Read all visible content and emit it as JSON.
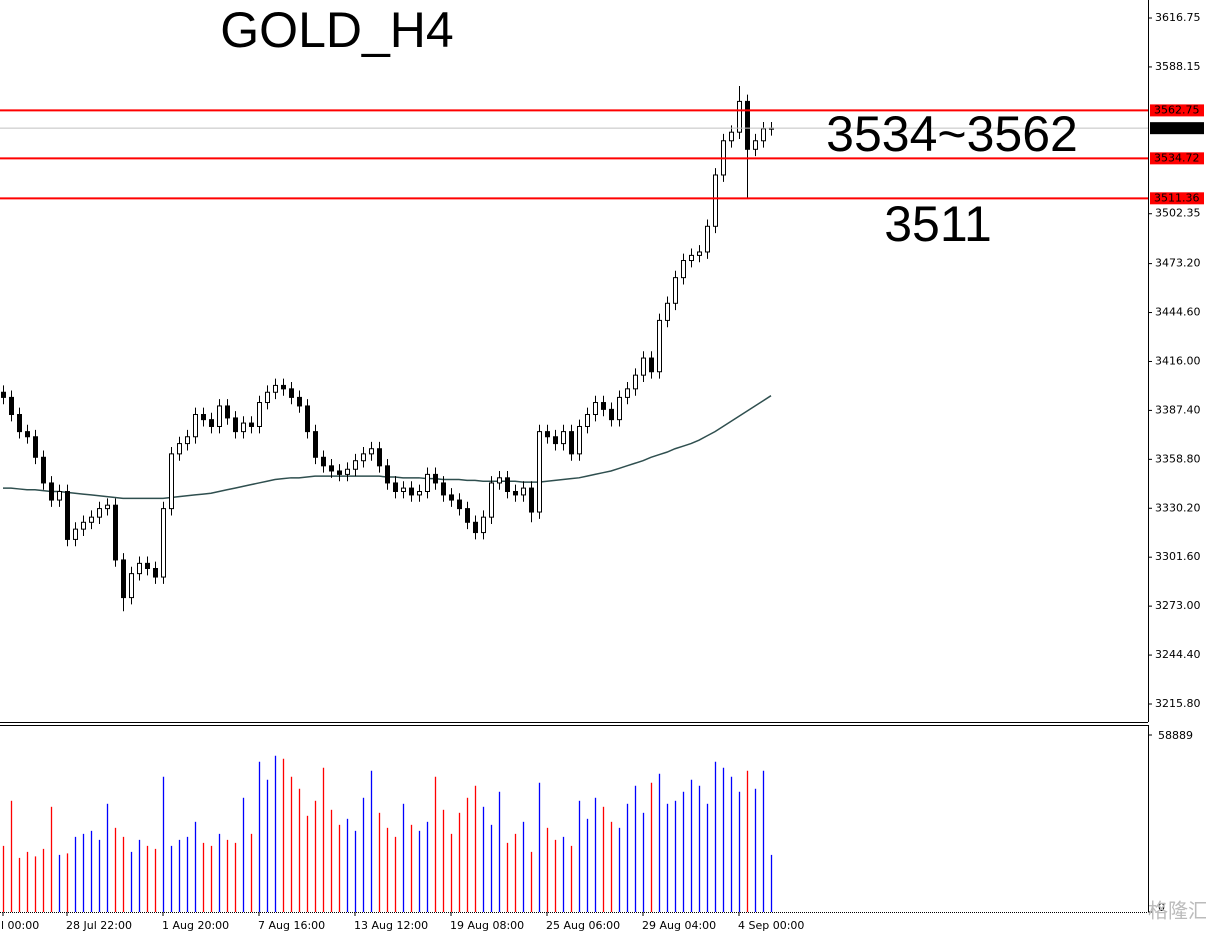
{
  "chart_data": {
    "type": "candlestick",
    "title": "GOLD_H4",
    "title_color": "#ff0000",
    "annotations": [
      {
        "text": "3534~3562",
        "color": "#000080"
      },
      {
        "text": "3511",
        "color": "#ff0000"
      }
    ],
    "categories": [
      "l 00:00",
      null,
      null,
      null,
      null,
      null,
      null,
      null,
      "28 Jul 22:00",
      null,
      null,
      null,
      null,
      null,
      null,
      null,
      null,
      null,
      null,
      null,
      "1 Aug 20:00",
      null,
      null,
      null,
      null,
      null,
      null,
      null,
      null,
      null,
      null,
      null,
      "7 Aug 16:00",
      null,
      null,
      null,
      null,
      null,
      null,
      null,
      null,
      null,
      null,
      null,
      "13 Aug 12:00",
      null,
      null,
      null,
      null,
      null,
      null,
      null,
      null,
      null,
      null,
      null,
      "19 Aug 08:00",
      null,
      null,
      null,
      null,
      null,
      null,
      null,
      null,
      null,
      null,
      null,
      "25 Aug 06:00",
      null,
      null,
      null,
      null,
      null,
      null,
      null,
      null,
      null,
      null,
      null,
      "29 Aug 04:00",
      null,
      null,
      null,
      null,
      null,
      null,
      null,
      null,
      null,
      null,
      null,
      "4 Sep 00:00",
      null,
      null,
      null,
      null
    ],
    "open": [
      3398,
      3395,
      3385,
      3375,
      3372,
      3360,
      3345,
      3335,
      3340,
      3312,
      3318,
      3322,
      3325,
      3330,
      3332,
      3300,
      3278,
      3292,
      3298,
      3295,
      3290,
      3330,
      3362,
      3368,
      3372,
      3385,
      3382,
      3378,
      3390,
      3383,
      3375,
      3380,
      3378,
      3392,
      3398,
      3402,
      3400,
      3395,
      3390,
      3375,
      3360,
      3355,
      3352,
      3350,
      3353,
      3358,
      3362,
      3365,
      3355,
      3345,
      3340,
      3342,
      3338,
      3340,
      3350,
      3345,
      3338,
      3335,
      3330,
      3322,
      3316,
      3325,
      3345,
      3348,
      3340,
      3338,
      3342,
      3328,
      3375,
      3372,
      3368,
      3375,
      3362,
      3378,
      3385,
      3392,
      3388,
      3382,
      3395,
      3400,
      3408,
      3418,
      3410,
      3440,
      3450,
      3465,
      3475,
      3478,
      3480,
      3495,
      3525,
      3545,
      3550,
      3568,
      3540,
      3545,
      3552
    ],
    "high": [
      3402,
      3399,
      3389,
      3379,
      3376,
      3364,
      3349,
      3344,
      3344,
      3322,
      3326,
      3329,
      3334,
      3336,
      3336,
      3304,
      3296,
      3302,
      3302,
      3299,
      3334,
      3366,
      3372,
      3376,
      3389,
      3389,
      3386,
      3394,
      3394,
      3387,
      3384,
      3384,
      3396,
      3402,
      3406,
      3406,
      3404,
      3399,
      3394,
      3379,
      3364,
      3359,
      3356,
      3357,
      3362,
      3366,
      3369,
      3369,
      3359,
      3349,
      3346,
      3346,
      3344,
      3354,
      3354,
      3349,
      3342,
      3339,
      3334,
      3326,
      3329,
      3349,
      3352,
      3352,
      3344,
      3346,
      3346,
      3379,
      3379,
      3376,
      3379,
      3379,
      3382,
      3389,
      3396,
      3396,
      3392,
      3399,
      3404,
      3412,
      3422,
      3422,
      3444,
      3454,
      3469,
      3479,
      3482,
      3484,
      3499,
      3529,
      3549,
      3554,
      3577,
      3572,
      3549,
      3556,
      3556
    ],
    "low": [
      3391,
      3381,
      3371,
      3368,
      3356,
      3341,
      3331,
      3331,
      3308,
      3308,
      3314,
      3318,
      3321,
      3326,
      3296,
      3270,
      3274,
      3288,
      3291,
      3286,
      3286,
      3326,
      3358,
      3364,
      3368,
      3378,
      3374,
      3374,
      3379,
      3371,
      3371,
      3374,
      3374,
      3388,
      3394,
      3396,
      3391,
      3386,
      3371,
      3356,
      3351,
      3348,
      3346,
      3346,
      3349,
      3354,
      3358,
      3351,
      3341,
      3336,
      3336,
      3334,
      3334,
      3336,
      3341,
      3334,
      3331,
      3326,
      3318,
      3312,
      3312,
      3321,
      3341,
      3336,
      3334,
      3334,
      3322,
      3324,
      3368,
      3364,
      3364,
      3358,
      3358,
      3374,
      3381,
      3384,
      3378,
      3378,
      3391,
      3396,
      3404,
      3406,
      3406,
      3436,
      3446,
      3461,
      3471,
      3474,
      3476,
      3491,
      3521,
      3541,
      3546,
      3511,
      3536,
      3541,
      3548
    ],
    "close": [
      3395,
      3385,
      3375,
      3372,
      3360,
      3345,
      3335,
      3340,
      3312,
      3318,
      3322,
      3325,
      3330,
      3332,
      3300,
      3278,
      3292,
      3298,
      3295,
      3290,
      3330,
      3362,
      3368,
      3372,
      3385,
      3382,
      3378,
      3390,
      3383,
      3375,
      3380,
      3378,
      3392,
      3398,
      3402,
      3400,
      3395,
      3390,
      3375,
      3360,
      3355,
      3352,
      3350,
      3353,
      3358,
      3362,
      3365,
      3355,
      3345,
      3340,
      3342,
      3338,
      3340,
      3350,
      3345,
      3338,
      3335,
      3330,
      3322,
      3316,
      3325,
      3345,
      3348,
      3340,
      3338,
      3342,
      3328,
      3375,
      3372,
      3368,
      3375,
      3362,
      3378,
      3385,
      3392,
      3388,
      3382,
      3395,
      3400,
      3408,
      3418,
      3410,
      3440,
      3450,
      3465,
      3475,
      3478,
      3480,
      3495,
      3525,
      3545,
      3550,
      3568,
      3540,
      3545,
      3552,
      3552.36
    ],
    "up_color": "#ffffff",
    "down_color": "#000000",
    "ma_values": [
      3342,
      3342,
      3341.5,
      3341,
      3341,
      3340.5,
      3340,
      3340,
      3339.5,
      3339,
      3338.5,
      3338,
      3337.5,
      3337,
      3336.5,
      3336,
      3336,
      3336,
      3336,
      3336,
      3336,
      3336.5,
      3337,
      3337.5,
      3338,
      3338.5,
      3339,
      3340,
      3341,
      3342,
      3343,
      3344,
      3345,
      3346,
      3347,
      3347.5,
      3348,
      3348,
      3348.5,
      3349,
      3349,
      3349,
      3349,
      3349,
      3349,
      3349,
      3349,
      3349,
      3348.5,
      3348.5,
      3348,
      3348,
      3348,
      3347.5,
      3347.5,
      3347,
      3347,
      3347,
      3346.5,
      3346.5,
      3346,
      3346,
      3346,
      3346,
      3346,
      3345.5,
      3345.5,
      3345.5,
      3346,
      3346.5,
      3347,
      3347.5,
      3348,
      3349,
      3350,
      3351,
      3352,
      3353.5,
      3355,
      3356.5,
      3358,
      3360,
      3361.5,
      3363,
      3365,
      3366.5,
      3368,
      3370,
      3372.5,
      3375,
      3378,
      3381,
      3384,
      3387,
      3390,
      3393,
      3396
    ],
    "ma_color": "#2f4f4f",
    "levels": [
      3562.75,
      3534.72,
      3511.36
    ],
    "level_color": "#ff0000",
    "last_price": 3552.36,
    "ylim": [
      3205.28,
      3627.27
    ],
    "yticks": [
      3616.75,
      3588.15,
      3502.35,
      {
        "value": 3473.2,
        "label": "3473.20"
      },
      {
        "value": 3444.6,
        "label": "3444.60"
      },
      {
        "value": 3416,
        "label": "3416.00"
      },
      {
        "value": 3387.4,
        "label": "3387.40"
      },
      {
        "value": 3358.8,
        "label": "3358.80"
      },
      {
        "value": 3330.2,
        "label": "3330.20"
      },
      {
        "value": 3301.6,
        "label": "3301.60"
      },
      {
        "value": 3273,
        "label": "3273.00"
      },
      {
        "value": 3244.4,
        "label": "3244.40"
      },
      {
        "value": 3215.8,
        "label": "3215.80"
      }
    ],
    "volume": {
      "values": [
        22000,
        37000,
        18000,
        20000,
        18500,
        21000,
        35000,
        19000,
        19500,
        25000,
        26000,
        27000,
        24000,
        36000,
        28000,
        25000,
        20000,
        24000,
        22000,
        21000,
        45000,
        22000,
        24000,
        25000,
        30000,
        23000,
        22000,
        26000,
        24000,
        23000,
        38000,
        26000,
        50000,
        44000,
        52000,
        51000,
        45000,
        41000,
        32000,
        37000,
        48000,
        34000,
        29000,
        31000,
        27000,
        38000,
        47000,
        33000,
        28000,
        25000,
        36000,
        29000,
        27000,
        30000,
        45000,
        34000,
        26000,
        33000,
        38000,
        42000,
        35000,
        29000,
        40000,
        23000,
        26000,
        30000,
        20000,
        43000,
        28000,
        24000,
        25000,
        22000,
        37000,
        31000,
        38000,
        35000,
        30000,
        28000,
        36000,
        42000,
        33000,
        43000,
        46000,
        36000,
        37000,
        40000,
        44000,
        42000,
        36000,
        50000,
        48000,
        45000,
        40000,
        47000,
        41000,
        47000,
        19000
      ],
      "up_color": "#0000ff",
      "down_color": "#ff0000",
      "ylim": [
        0,
        61550
      ],
      "yticks": [
        0,
        58889
      ]
    },
    "watermark": "格隆汇"
  }
}
